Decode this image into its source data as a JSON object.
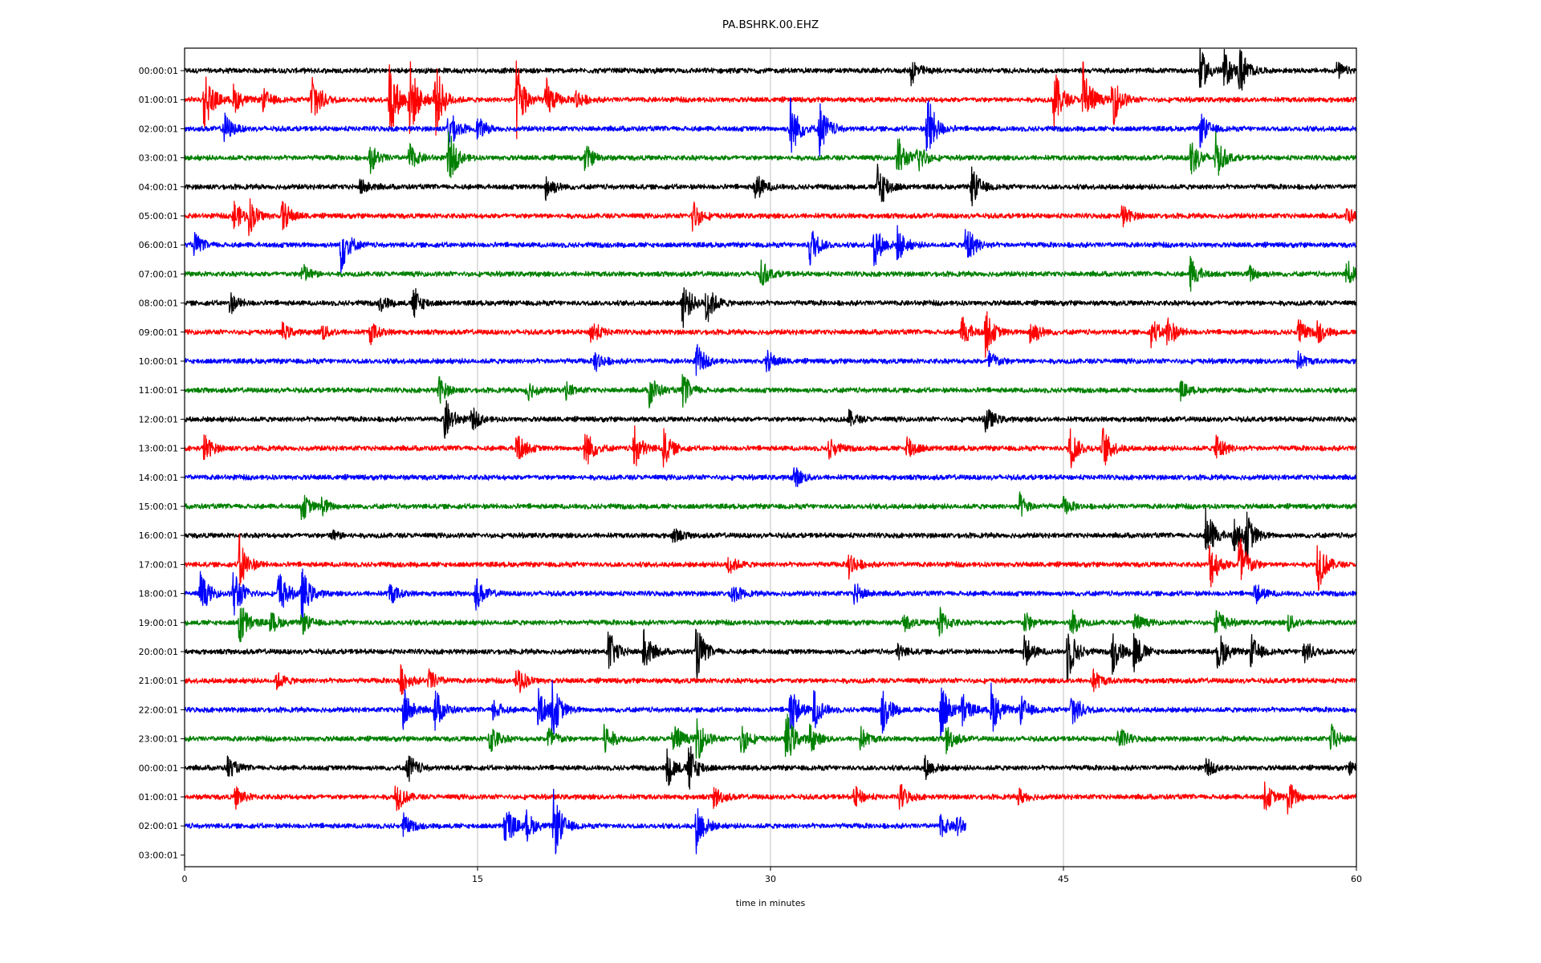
{
  "chart_data": {
    "type": "line",
    "title": "PA.BSHRK.00.EHZ",
    "xlabel": "time in minutes",
    "ylabel": "",
    "xlim": [
      0,
      60
    ],
    "xticks": [
      "0",
      "15",
      "30",
      "45",
      "60"
    ],
    "xtick_values": [
      0,
      15,
      30,
      45,
      60
    ],
    "grid": "vertical at 15, 30, 45",
    "colors": [
      "#000000",
      "#ff0000",
      "#0000ff",
      "#008000"
    ],
    "noise_level": 0.1,
    "rows": [
      {
        "label": "00:00:01",
        "end": 60,
        "events": [
          [
            37.2,
            0.5
          ],
          [
            52,
            0.8
          ],
          [
            53.2,
            0.7
          ],
          [
            54,
            0.9
          ],
          [
            59,
            0.3
          ]
        ]
      },
      {
        "label": "01:00:01",
        "end": 60,
        "events": [
          [
            1,
            1.2
          ],
          [
            2.5,
            0.5
          ],
          [
            4,
            0.4
          ],
          [
            6.5,
            1.2
          ],
          [
            10.5,
            1.5
          ],
          [
            11.5,
            1.5
          ],
          [
            12.8,
            1.5
          ],
          [
            17,
            1.5
          ],
          [
            18.5,
            0.8
          ],
          [
            20,
            0.4
          ],
          [
            44.5,
            1.2
          ],
          [
            46,
            1.5
          ],
          [
            47.5,
            1.0
          ]
        ]
      },
      {
        "label": "02:00:01",
        "end": 60,
        "events": [
          [
            2,
            0.6
          ],
          [
            13.5,
            0.8
          ],
          [
            15,
            0.4
          ],
          [
            31,
            1.2
          ],
          [
            32.5,
            1.0
          ],
          [
            38,
            1.4
          ],
          [
            52,
            0.6
          ]
        ]
      },
      {
        "label": "03:00:01",
        "end": 60,
        "events": [
          [
            9.5,
            0.5
          ],
          [
            11.5,
            0.5
          ],
          [
            13.5,
            1.0
          ],
          [
            20.5,
            0.5
          ],
          [
            36.5,
            0.8
          ],
          [
            37.5,
            0.6
          ],
          [
            51.5,
            0.8
          ],
          [
            52.8,
            0.8
          ]
        ]
      },
      {
        "label": "04:00:01",
        "end": 60,
        "events": [
          [
            9,
            0.3
          ],
          [
            18.5,
            0.5
          ],
          [
            29.2,
            0.6
          ],
          [
            35.5,
            1.0
          ],
          [
            40.3,
            0.7
          ]
        ]
      },
      {
        "label": "05:00:01",
        "end": 60,
        "events": [
          [
            2.5,
            0.6
          ],
          [
            3.3,
            0.6
          ],
          [
            5,
            0.6
          ],
          [
            26,
            0.6
          ],
          [
            48,
            0.4
          ],
          [
            59.5,
            0.3
          ]
        ]
      },
      {
        "label": "06:00:01",
        "end": 60,
        "events": [
          [
            0.5,
            0.4
          ],
          [
            8,
            1.0
          ],
          [
            32,
            0.8
          ],
          [
            35.3,
            0.8
          ],
          [
            36.5,
            0.6
          ],
          [
            40,
            0.9
          ]
        ]
      },
      {
        "label": "07:00:01",
        "end": 60,
        "events": [
          [
            6,
            0.4
          ],
          [
            29.5,
            0.5
          ],
          [
            51.5,
            0.6
          ],
          [
            54.5,
            0.3
          ],
          [
            59.5,
            0.5
          ]
        ]
      },
      {
        "label": "08:00:01",
        "end": 60,
        "events": [
          [
            2.3,
            0.4
          ],
          [
            10,
            0.3
          ],
          [
            11.7,
            0.6
          ],
          [
            25.5,
            0.9
          ],
          [
            26.7,
            0.8
          ]
        ]
      },
      {
        "label": "09:00:01",
        "end": 60,
        "events": [
          [
            5,
            0.3
          ],
          [
            7,
            0.3
          ],
          [
            9.5,
            0.4
          ],
          [
            20.8,
            0.5
          ],
          [
            39.8,
            0.6
          ],
          [
            41,
            0.8
          ],
          [
            43.3,
            0.6
          ],
          [
            49.5,
            0.5
          ],
          [
            50.3,
            0.6
          ],
          [
            57,
            0.5
          ],
          [
            58,
            0.4
          ]
        ]
      },
      {
        "label": "10:00:01",
        "end": 60,
        "events": [
          [
            21,
            0.4
          ],
          [
            26.2,
            0.6
          ],
          [
            29.8,
            0.4
          ],
          [
            41.2,
            0.4
          ],
          [
            57,
            0.3
          ]
        ]
      },
      {
        "label": "11:00:01",
        "end": 60,
        "events": [
          [
            13,
            0.5
          ],
          [
            17.5,
            0.4
          ],
          [
            19.5,
            0.3
          ],
          [
            23.8,
            0.6
          ],
          [
            25.5,
            0.6
          ],
          [
            51,
            0.3
          ]
        ]
      },
      {
        "label": "12:00:01",
        "end": 60,
        "events": [
          [
            13.3,
            0.8
          ],
          [
            14.7,
            0.4
          ],
          [
            34,
            0.3
          ],
          [
            41,
            0.5
          ]
        ]
      },
      {
        "label": "13:00:01",
        "end": 60,
        "events": [
          [
            1,
            0.5
          ],
          [
            17,
            0.6
          ],
          [
            20.5,
            0.8
          ],
          [
            23,
            0.8
          ],
          [
            24.5,
            0.7
          ],
          [
            33,
            0.4
          ],
          [
            37,
            0.5
          ],
          [
            45.3,
            0.8
          ],
          [
            47,
            0.8
          ],
          [
            52.8,
            0.6
          ]
        ]
      },
      {
        "label": "14:00:01",
        "end": 60,
        "events": [
          [
            31.2,
            0.4
          ]
        ]
      },
      {
        "label": "15:00:01",
        "end": 60,
        "events": [
          [
            6,
            0.5
          ],
          [
            7,
            0.3
          ],
          [
            42.7,
            0.5
          ],
          [
            45,
            0.3
          ]
        ]
      },
      {
        "label": "16:00:01",
        "end": 60,
        "events": [
          [
            7.5,
            0.2
          ],
          [
            25,
            0.3
          ],
          [
            52.3,
            1.0
          ],
          [
            53.7,
            0.6
          ],
          [
            54.3,
            0.9
          ]
        ]
      },
      {
        "label": "17:00:01",
        "end": 60,
        "events": [
          [
            2.8,
            1.0
          ],
          [
            27.8,
            0.4
          ],
          [
            34,
            0.5
          ],
          [
            52.5,
            0.9
          ],
          [
            54,
            1.2
          ],
          [
            58,
            1.0
          ]
        ]
      },
      {
        "label": "18:00:01",
        "end": 60,
        "events": [
          [
            0.8,
            0.8
          ],
          [
            2.5,
            1.0
          ],
          [
            4.8,
            0.9
          ],
          [
            6,
            0.9
          ],
          [
            10.5,
            0.4
          ],
          [
            14.9,
            0.6
          ],
          [
            28,
            0.4
          ],
          [
            34.3,
            0.4
          ],
          [
            54.8,
            0.4
          ]
        ]
      },
      {
        "label": "19:00:01",
        "end": 60,
        "events": [
          [
            2.8,
            0.9
          ],
          [
            4.4,
            0.4
          ],
          [
            6,
            0.4
          ],
          [
            36.8,
            0.3
          ],
          [
            38.6,
            0.6
          ],
          [
            43,
            0.4
          ],
          [
            45.3,
            0.6
          ],
          [
            48.6,
            0.4
          ],
          [
            52.8,
            0.6
          ],
          [
            56.5,
            0.3
          ]
        ]
      },
      {
        "label": "20:00:01",
        "end": 60,
        "events": [
          [
            21.7,
            0.8
          ],
          [
            23.5,
            0.8
          ],
          [
            26.2,
            1.0
          ],
          [
            36.5,
            0.3
          ],
          [
            43,
            0.6
          ],
          [
            45.2,
            1.1
          ],
          [
            47.5,
            0.8
          ],
          [
            48.6,
            0.8
          ],
          [
            52.9,
            0.8
          ],
          [
            54.6,
            0.6
          ],
          [
            57.3,
            0.5
          ]
        ]
      },
      {
        "label": "21:00:01",
        "end": 60,
        "events": [
          [
            4.7,
            0.3
          ],
          [
            11,
            0.6
          ],
          [
            12.5,
            0.4
          ],
          [
            17,
            0.6
          ],
          [
            46.5,
            0.4
          ]
        ]
      },
      {
        "label": "22:00:01",
        "end": 60,
        "events": [
          [
            11.2,
            0.8
          ],
          [
            12.8,
            0.8
          ],
          [
            15.8,
            0.4
          ],
          [
            18.1,
            0.8
          ],
          [
            18.8,
            1.0
          ],
          [
            31,
            1.0
          ],
          [
            32.2,
            0.7
          ],
          [
            35.7,
            0.9
          ],
          [
            38.7,
            1.1
          ],
          [
            39.8,
            0.6
          ],
          [
            41.3,
            0.9
          ],
          [
            42.8,
            0.5
          ],
          [
            45.4,
            0.8
          ]
        ]
      },
      {
        "label": "23:00:01",
        "end": 60,
        "events": [
          [
            15.6,
            0.6
          ],
          [
            18.6,
            0.5
          ],
          [
            21.5,
            0.6
          ],
          [
            25,
            0.7
          ],
          [
            26.2,
            0.9
          ],
          [
            28.5,
            0.6
          ],
          [
            30.8,
            1.0
          ],
          [
            32,
            0.5
          ],
          [
            34.6,
            0.4
          ],
          [
            39,
            0.5
          ],
          [
            47.8,
            0.5
          ],
          [
            58.7,
            0.5
          ]
        ]
      },
      {
        "label": "00:00:01",
        "end": 60,
        "events": [
          [
            2.2,
            0.4
          ],
          [
            11.4,
            0.6
          ],
          [
            24.7,
            0.7
          ],
          [
            25.8,
            0.9
          ],
          [
            37.9,
            0.4
          ],
          [
            52.3,
            0.3
          ],
          [
            59.6,
            0.2
          ]
        ]
      },
      {
        "label": "01:00:01",
        "end": 60,
        "events": [
          [
            2.6,
            0.4
          ],
          [
            10.8,
            0.6
          ],
          [
            27.1,
            0.4
          ],
          [
            34.3,
            0.4
          ],
          [
            36.6,
            0.5
          ],
          [
            42.7,
            0.3
          ],
          [
            55.3,
            0.5
          ],
          [
            56.5,
            0.6
          ]
        ]
      },
      {
        "label": "02:00:01",
        "end": 40,
        "events": [
          [
            11.2,
            0.4
          ],
          [
            16.4,
            0.9
          ],
          [
            17.5,
            0.5
          ],
          [
            18.9,
            1.2
          ],
          [
            26.2,
            0.9
          ],
          [
            38.7,
            0.4
          ],
          [
            39.5,
            0.4
          ]
        ]
      },
      {
        "label": "03:00:01",
        "end": 0,
        "events": []
      }
    ]
  }
}
